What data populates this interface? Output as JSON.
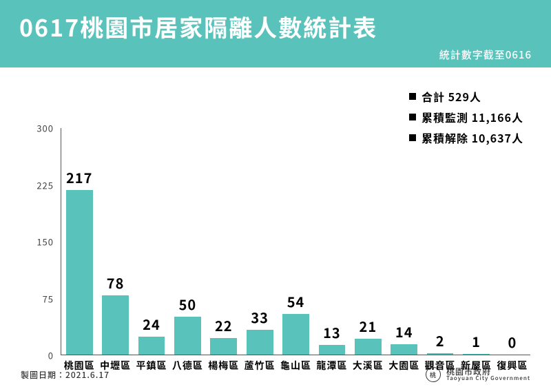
{
  "header": {
    "title": "0617桃園市居家隔離人數統計表",
    "subtitle": "統計數字截至0616",
    "background_color": "#59c2bb",
    "text_color": "#ffffff",
    "title_fontsize": 34,
    "subtitle_fontsize": 15
  },
  "legend": {
    "text_color": "#000000",
    "square_color": "#000000",
    "fontsize": 16,
    "items": [
      "合計 529人",
      "累積監測 11,166人",
      "累積解除 10,637人"
    ]
  },
  "chart": {
    "type": "bar",
    "bar_color": "#59c2bb",
    "background_color": "#ffffff",
    "axis_color": "#555555",
    "value_label_color": "#000000",
    "value_label_fontsize": 20,
    "xlabel_color": "#000000",
    "xlabel_fontsize": 14,
    "ytick_color": "#444444",
    "ymin": 0,
    "ymax": 300,
    "ytick_step": 75,
    "yticks": [
      0,
      75,
      150,
      225,
      300
    ],
    "bar_width_ratio": 0.74,
    "categories": [
      "桃園區",
      "中壢區",
      "平鎮區",
      "八德區",
      "楊梅區",
      "蘆竹區",
      "龜山區",
      "龍潭區",
      "大溪區",
      "大園區",
      "觀音區",
      "新屋區",
      "復興區"
    ],
    "values": [
      217,
      78,
      24,
      50,
      22,
      33,
      54,
      13,
      21,
      14,
      2,
      1,
      0
    ]
  },
  "footer": {
    "left": "製圖日期：2021.6.17",
    "org_zh": "桃園市政府",
    "org_en": "Taoyuan City Government",
    "text_color": "#333333",
    "fontsize": 12,
    "en_fontsize": 8
  }
}
